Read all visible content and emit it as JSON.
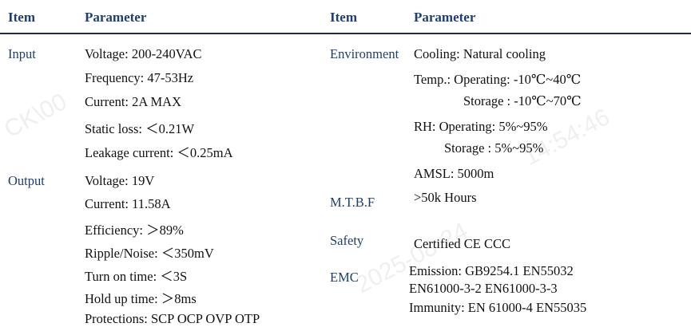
{
  "header": {
    "left_item": "Item",
    "left_param": "Parameter",
    "right_item": "Item",
    "right_param": "Parameter"
  },
  "left": {
    "input": {
      "item": "Input",
      "params": [
        "Voltage: 200-240VAC",
        "Frequency: 47-53Hz",
        "Current: 2A MAX",
        "Static loss: ＜0.21W",
        "Leakage current: ＜0.25mA"
      ]
    },
    "output": {
      "item": "Output",
      "params": [
        "Voltage: 19V",
        "Current: 11.58A",
        "Efficiency: ＞89%",
        "Ripple/Noise: ＜350mV",
        "Turn on time: ＜3S",
        "Hold up time: ＞8ms",
        "Protections: SCP OCP OVP OTP"
      ]
    }
  },
  "right": {
    "environment": {
      "item": "Environment",
      "params": [
        "Cooling: Natural cooling",
        "Temp.: Operating: -10℃~40℃",
        "Storage : -10℃~70℃",
        "RH: Operating: 5%~95%",
        "Storage : 5%~95%",
        "AMSL: 5000m"
      ]
    },
    "mtbf": {
      "item": "M.T.B.F",
      "param": ">50k Hours"
    },
    "safety": {
      "item": "Safety",
      "param": "Certified CE  CCC"
    },
    "emc": {
      "item": "EMC",
      "params": [
        "Emission: GB9254.1 EN55032",
        "EN61000-3-2 EN61000-3-3",
        "Immunity: EN 61000-4 EN55035"
      ]
    }
  },
  "watermark": {
    "text_1": "CK\\00",
    "text_2": "14:54:46",
    "text_3": "2025-08-24"
  }
}
